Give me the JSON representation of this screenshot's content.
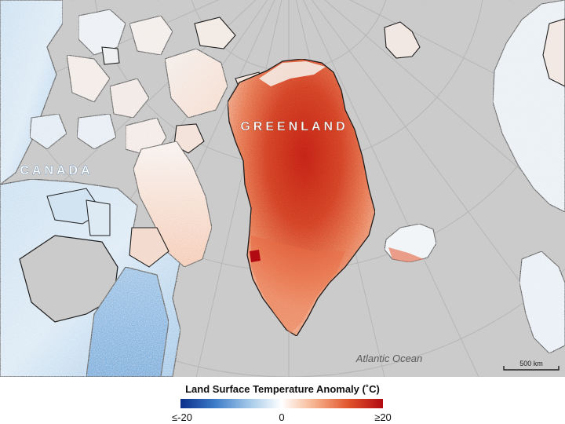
{
  "map": {
    "labels": {
      "greenland": "GREENLAND",
      "canada": "CANADA",
      "ocean": "Atlantic Ocean"
    },
    "scale_bar": {
      "label": "500 km",
      "distance_km": 500
    }
  },
  "legend": {
    "title": "Land Surface Temperature Anomaly (˚C)",
    "min_label": "≤-20",
    "mid_label": "0",
    "max_label": "≥20",
    "range": [
      -20,
      20
    ],
    "colors": [
      "#0a2f8a",
      "#3d7cc9",
      "#a9cdea",
      "#ffffff",
      "#f6b38e",
      "#e1542c",
      "#b10a12"
    ]
  },
  "colors": {
    "ocean": "#cbcbcb",
    "coastline": "#1f1f1f",
    "graticule": "#b6b6b6"
  }
}
